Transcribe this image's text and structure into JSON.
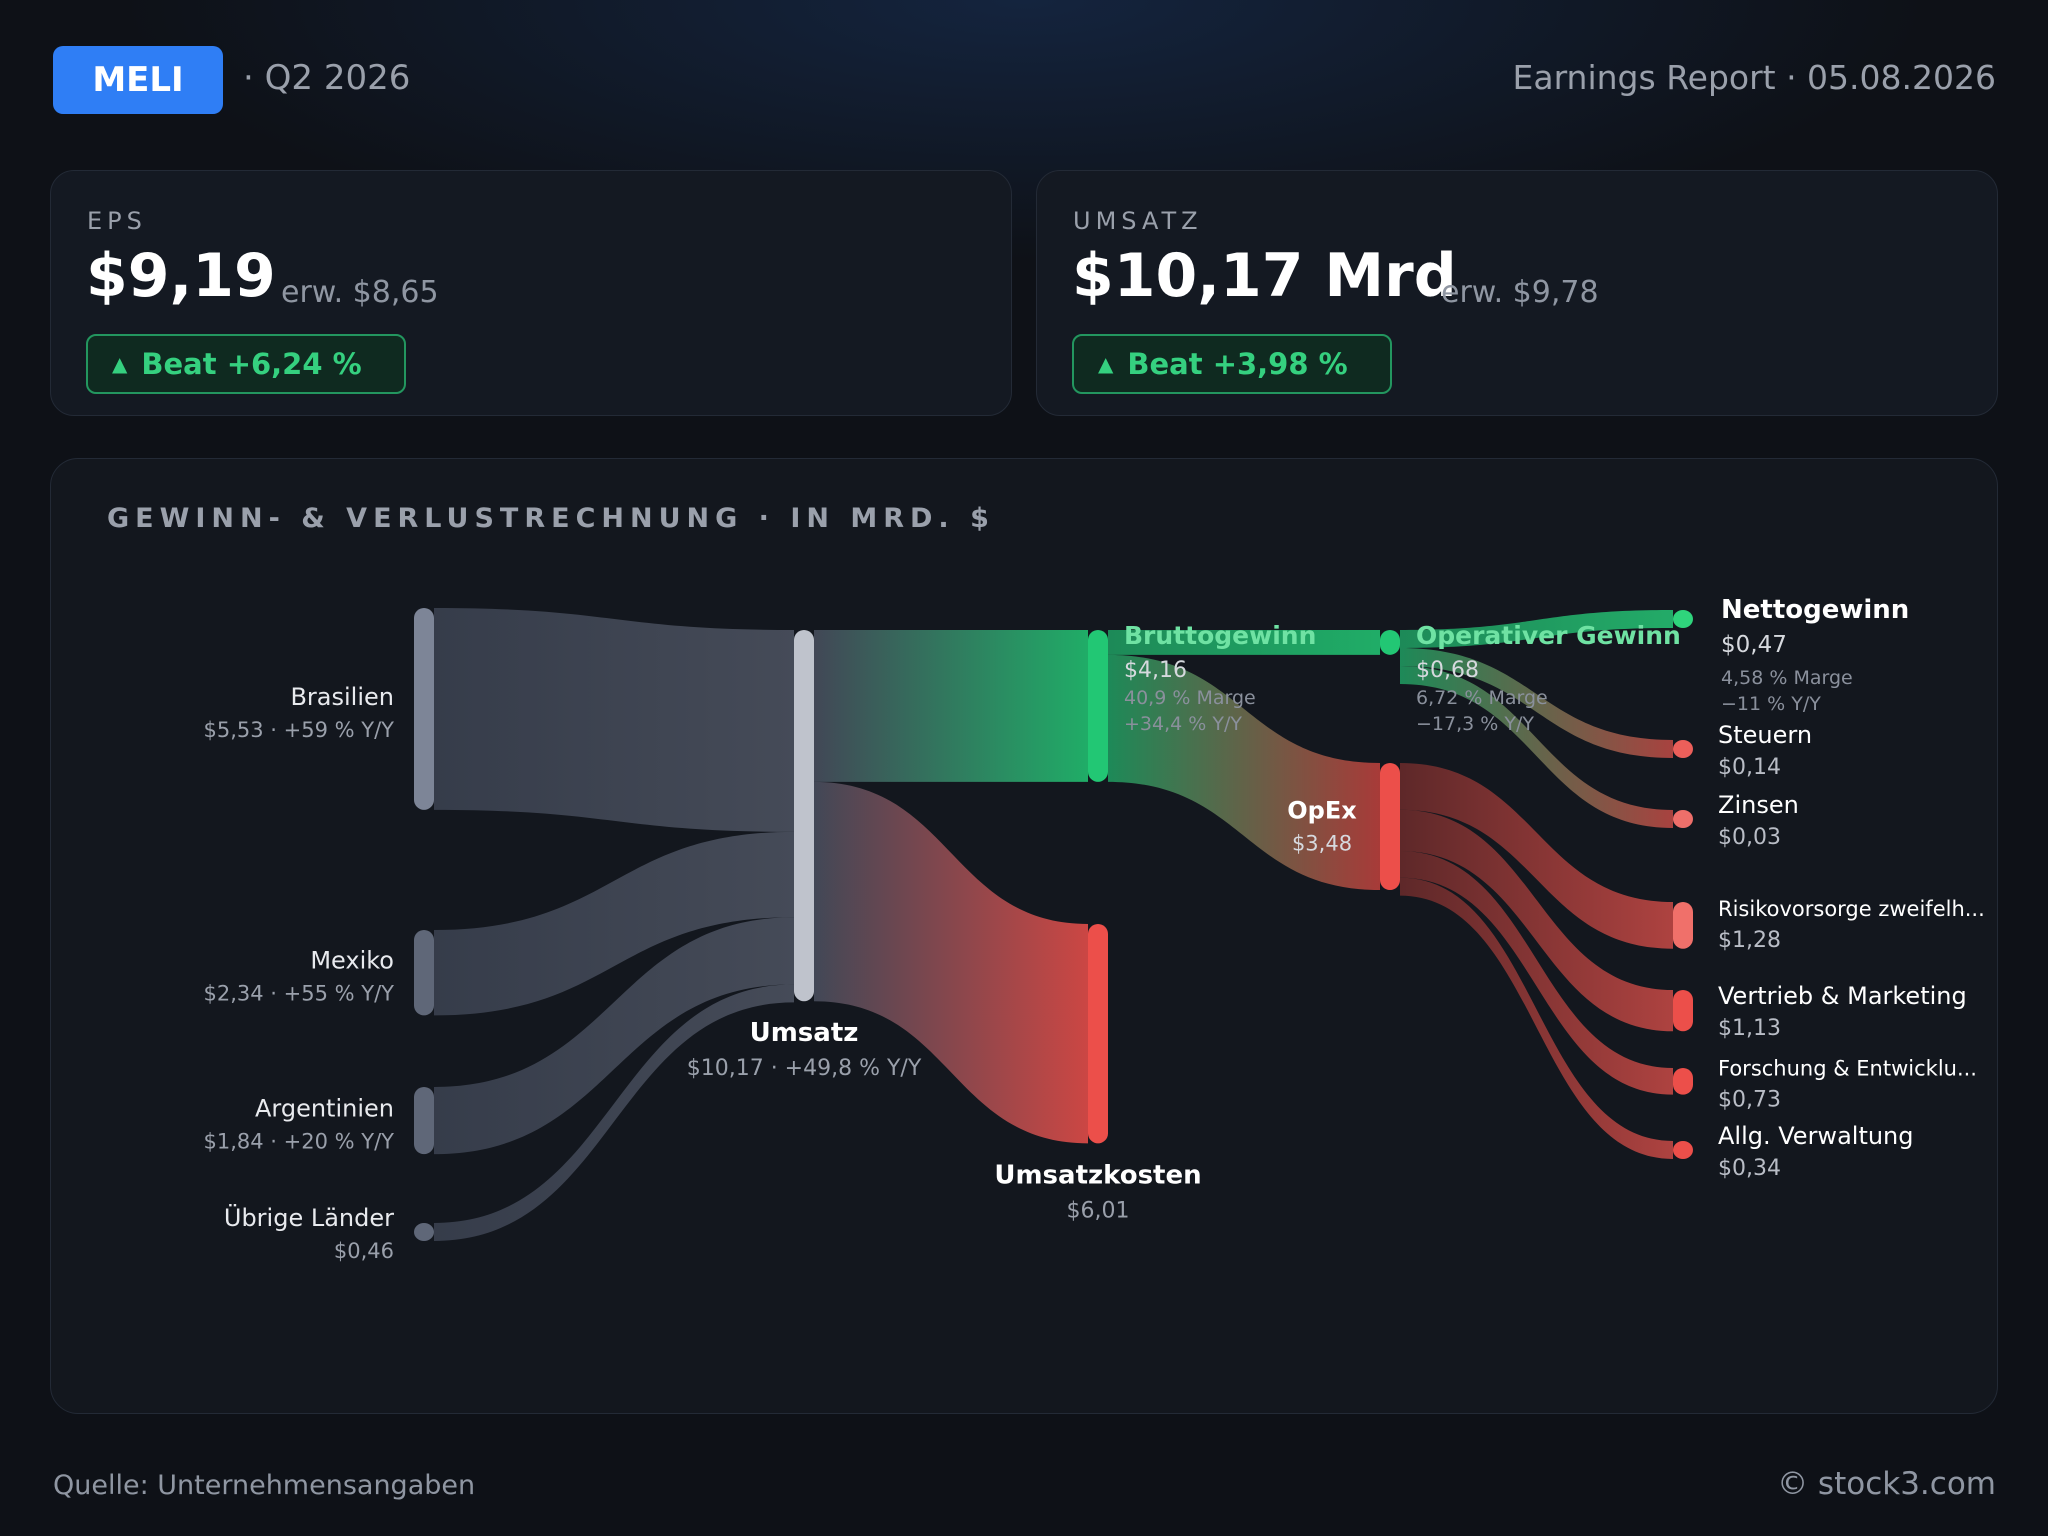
{
  "header": {
    "ticker": "MELI",
    "period": "· Q2 2026",
    "report": "Earnings Report · 05.08.2026"
  },
  "kpis": {
    "eps": {
      "label": "EPS",
      "value": "$9,19",
      "estimate": "erw. $8,65",
      "badge": "Beat +6,24 %",
      "badge_icon": "triangle-up-icon"
    },
    "revenue": {
      "label": "UMSATZ",
      "value": "$10,17 Mrd",
      "estimate": "erw. $9,78",
      "badge": "Beat +3,98 %",
      "badge_icon": "triangle-up-icon"
    }
  },
  "panel": {
    "title": "GEWINN- & VERLUSTRECHNUNG · IN MRD. $"
  },
  "colors": {
    "accent": "#2f7ef5",
    "positive": "#22c774",
    "negative": "#ec4f4a",
    "neutral": "#6b7486"
  },
  "chart_data": {
    "type": "sankey",
    "title": "GEWINN- & VERLUSTRECHNUNG · IN MRD. $",
    "unit": "Mrd. $",
    "nodes": [
      {
        "id": "brasilien",
        "name": "Brasilien",
        "value": 5.53,
        "value_label": "$5,53",
        "detail": "$5,53 · +59 % Y/Y",
        "color": "#7d8597"
      },
      {
        "id": "mexiko",
        "name": "Mexiko",
        "value": 2.34,
        "value_label": "$2,34",
        "detail": "$2,34 · +55 % Y/Y",
        "color": "#5f6778"
      },
      {
        "id": "argentinien",
        "name": "Argentinien",
        "value": 1.84,
        "value_label": "$1,84",
        "detail": "$1,84 · +20 % Y/Y",
        "color": "#5f6778"
      },
      {
        "id": "uebrige",
        "name": "Übrige Länder",
        "value": 0.46,
        "value_label": "$0,46",
        "detail": "$0,46",
        "color": "#5f6778"
      },
      {
        "id": "umsatz",
        "name": "Umsatz",
        "value": 10.17,
        "value_label": "$10,17",
        "detail": "$10,17 · +49,8 % Y/Y",
        "color": "#bfc3cc"
      },
      {
        "id": "brutto",
        "name": "Bruttogewinn",
        "value": 4.16,
        "value_label": "$4,16",
        "detail": "$4,16",
        "sub1": "40,9 % Marge",
        "sub2": "+34,4 % Y/Y",
        "color": "#22c774"
      },
      {
        "id": "kosten",
        "name": "Umsatzkosten",
        "value": 6.01,
        "value_label": "$6,01",
        "detail": "$6,01",
        "color": "#ec4f4a"
      },
      {
        "id": "opgewinn",
        "name": "Operativer Gewinn",
        "value": 0.68,
        "value_label": "$0,68",
        "detail": "$0,68",
        "sub1": "6,72 % Marge",
        "sub2": "−17,3 % Y/Y",
        "color": "#22c774"
      },
      {
        "id": "opex",
        "name": "OpEx",
        "value": 3.48,
        "value_label": "$3,48",
        "detail": "$3,48",
        "color": "#ec4f4a"
      },
      {
        "id": "netto",
        "name": "Nettogewinn",
        "value": 0.47,
        "value_label": "$0,47",
        "detail": "$0,47",
        "sub1": "4,58 % Marge",
        "sub2": "−11 % Y/Y",
        "color": "#2fd47c"
      },
      {
        "id": "steuern",
        "name": "Steuern",
        "value": 0.14,
        "value_label": "$0,14",
        "detail": "$0,14",
        "color": "#ec5f5a"
      },
      {
        "id": "zinsen",
        "name": "Zinsen",
        "value": 0.03,
        "value_label": "$0,03",
        "detail": "$0,03",
        "color": "#ee6f6a"
      },
      {
        "id": "risiko",
        "name": "Risikovorsorge zweifelh...",
        "value": 1.28,
        "value_label": "$1,28",
        "detail": "$1,28",
        "color": "#f0706a"
      },
      {
        "id": "vertrieb",
        "name": "Vertrieb & Marketing",
        "value": 1.13,
        "value_label": "$1,13",
        "detail": "$1,13",
        "color": "#ec4f4a"
      },
      {
        "id": "forschung",
        "name": "Forschung & Entwicklu...",
        "value": 0.73,
        "value_label": "$0,73",
        "detail": "$0,73",
        "color": "#ec4f4a"
      },
      {
        "id": "verwaltung",
        "name": "Allg. Verwaltung",
        "value": 0.34,
        "value_label": "$0,34",
        "detail": "$0,34",
        "color": "#ec4f4a"
      }
    ],
    "links": [
      {
        "source": "brasilien",
        "target": "umsatz",
        "value": 5.53
      },
      {
        "source": "mexiko",
        "target": "umsatz",
        "value": 2.34
      },
      {
        "source": "argentinien",
        "target": "umsatz",
        "value": 1.84
      },
      {
        "source": "uebrige",
        "target": "umsatz",
        "value": 0.46
      },
      {
        "source": "umsatz",
        "target": "brutto",
        "value": 4.16
      },
      {
        "source": "umsatz",
        "target": "kosten",
        "value": 6.01
      },
      {
        "source": "brutto",
        "target": "opgewinn",
        "value": 0.68
      },
      {
        "source": "brutto",
        "target": "opex",
        "value": 3.48
      },
      {
        "source": "opgewinn",
        "target": "netto",
        "value": 0.47
      },
      {
        "source": "opgewinn",
        "target": "steuern",
        "value": 0.14
      },
      {
        "source": "opgewinn",
        "target": "zinsen",
        "value": 0.03
      },
      {
        "source": "opex",
        "target": "risiko",
        "value": 1.28
      },
      {
        "source": "opex",
        "target": "vertrieb",
        "value": 1.13
      },
      {
        "source": "opex",
        "target": "forschung",
        "value": 0.73
      },
      {
        "source": "opex",
        "target": "verwaltung",
        "value": 0.34
      }
    ]
  },
  "footer": {
    "source": "Quelle: Unternehmensangaben",
    "copyright": "© stock3.com"
  }
}
